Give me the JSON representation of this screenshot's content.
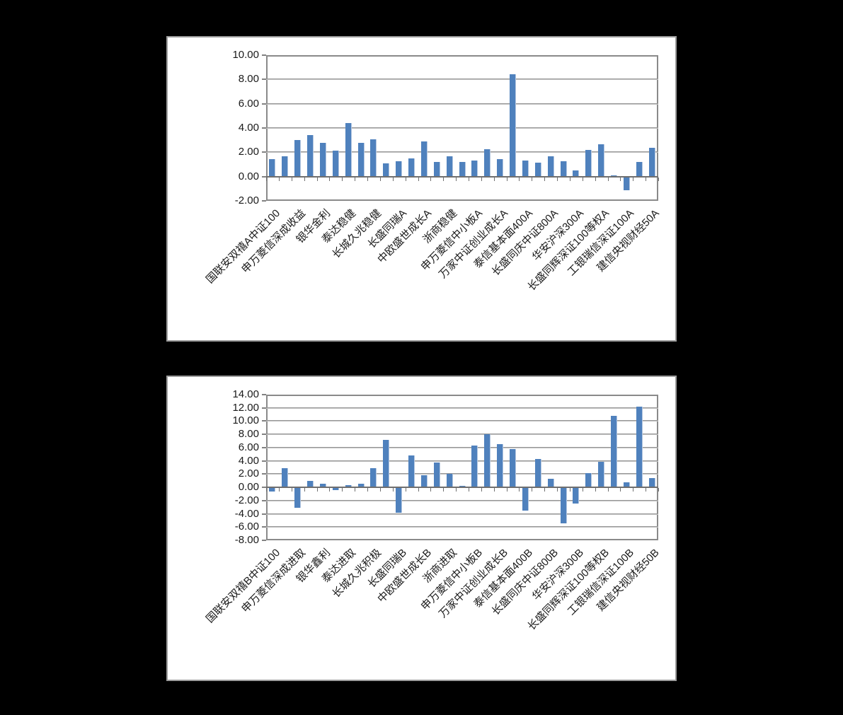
{
  "page": {
    "background": "#000000"
  },
  "chart_style": {
    "bar_color": "#4f81bd",
    "bar_edge_light": "#b3c6e0",
    "panel_bg": "#ffffff",
    "panel_border": "#9c9c9c",
    "grid_color": "#828282",
    "axis_color": "#6f6f6f",
    "text_color": "#1a1a1a"
  },
  "chart_data": [
    {
      "type": "bar",
      "title": "",
      "legend": false,
      "grid": true,
      "ylim": [
        -2,
        10
      ],
      "ytick_step": 2,
      "yticks": [
        "10.00",
        "8.00",
        "6.00",
        "4.00",
        "2.00",
        "0.00",
        "-2.00"
      ],
      "n_bars": 31,
      "label_every": 2,
      "categories": [
        "国联安双禧A中证100",
        "申万菱信深成收益",
        "银华金利",
        "泰达稳健",
        "长城久兆稳健",
        "长盛同瑞A",
        "中欧盛世成长A",
        "浙商稳健",
        "申万菱信中小板A",
        "万家中证创业成长A",
        "泰信基本面400A",
        "长盛同庆中证800A",
        "华安沪深300A",
        "长盛同辉深证100等权A",
        "工银瑞信深证100A",
        "建信央视财经50A"
      ],
      "values": [
        1.45,
        1.7,
        3.0,
        3.4,
        2.8,
        2.15,
        4.4,
        2.8,
        3.05,
        1.1,
        1.25,
        1.5,
        2.9,
        1.2,
        1.7,
        1.2,
        1.3,
        2.25,
        1.45,
        8.45,
        1.3,
        1.15,
        1.7,
        1.25,
        0.5,
        2.2,
        2.65,
        0.1,
        -1.1,
        1.2,
        2.35
      ]
    },
    {
      "type": "bar",
      "title": "",
      "legend": false,
      "grid": true,
      "ylim": [
        -8,
        14
      ],
      "ytick_step": 2,
      "yticks": [
        "14.00",
        "12.00",
        "10.00",
        "8.00",
        "6.00",
        "4.00",
        "2.00",
        "0.00",
        "-2.00",
        "-4.00",
        "-6.00",
        "-8.00"
      ],
      "n_bars": 31,
      "label_every": 2,
      "categories": [
        "国联安双禧B中证100",
        "申万菱信深成进取",
        "银华鑫利",
        "泰达进取",
        "长城久兆积极",
        "长盛同瑞B",
        "中欧盛世成长B",
        "浙商进取",
        "申万菱信中小板B",
        "万家中证创业成长B",
        "泰信基本面400B",
        "长盛同庆中证800B",
        "华安沪深300B",
        "长盛同辉深证100等权B",
        "工银瑞信深证100B",
        "建信央视财经50B"
      ],
      "values": [
        -0.6,
        2.9,
        -3.05,
        0.95,
        0.6,
        -0.45,
        0.3,
        0.55,
        2.85,
        7.15,
        -3.8,
        4.8,
        1.8,
        3.8,
        2.0,
        0.2,
        6.3,
        8.0,
        6.55,
        5.75,
        -3.5,
        4.3,
        1.25,
        -5.45,
        -2.4,
        2.2,
        3.9,
        10.8,
        0.75,
        12.2,
        1.45
      ]
    }
  ]
}
